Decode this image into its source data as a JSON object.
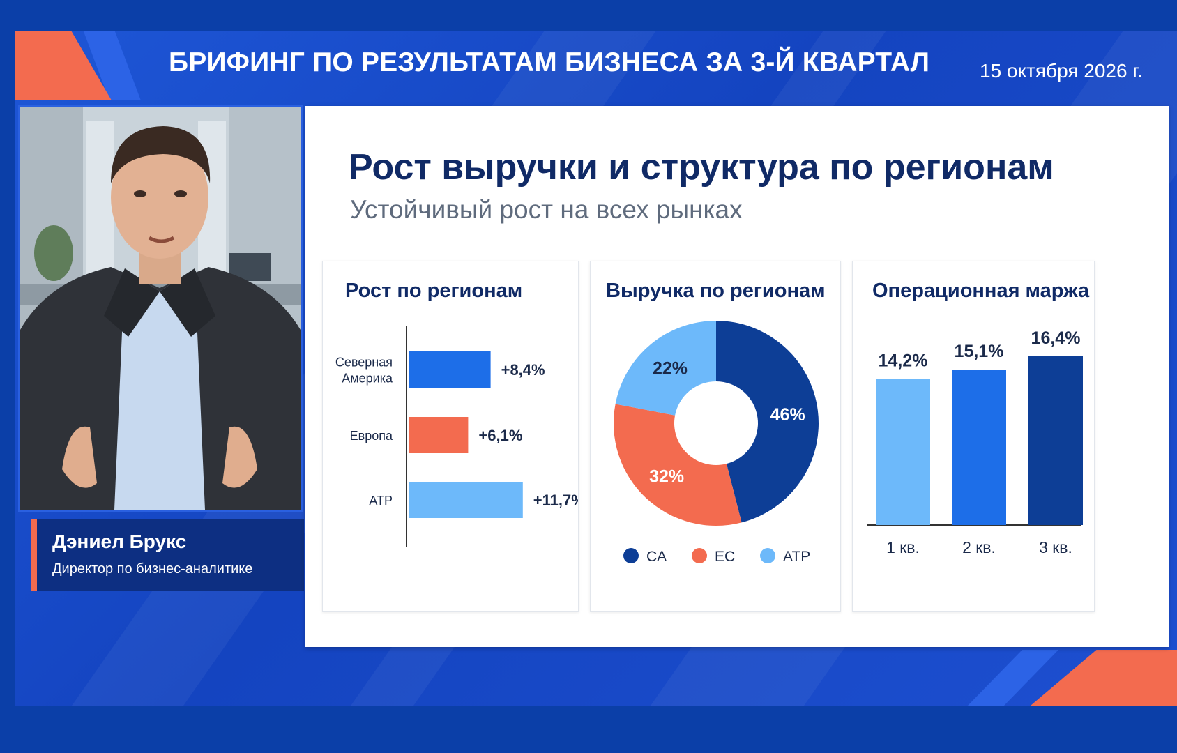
{
  "header": {
    "title": "БРИФИНГ ПО РЕЗУЛЬТАТАМ БИЗНЕСА ЗА 3-Й КВАРТАЛ",
    "date": "15 октября 2026 г."
  },
  "presenter": {
    "name": "Дэниел Брукс",
    "role": "Директор по бизнес-аналитике"
  },
  "slide": {
    "title": "Рост выручки и структура по регионам",
    "subtitle": "Устойчивый рост на всех рынках"
  },
  "colors": {
    "accent_orange": "#f36b4f",
    "brand_blue": "#1e56d6",
    "navy": "#0d3e96",
    "mid_blue": "#1d6ee8",
    "light_blue": "#6db9fa"
  },
  "chart_data": [
    {
      "type": "bar",
      "orientation": "horizontal",
      "title": "Рост по регионам",
      "categories": [
        "Северная Америка",
        "Европа",
        "ATP"
      ],
      "category_lines": [
        [
          "Северная",
          "Америка"
        ],
        [
          "Европа"
        ],
        [
          "ATP"
        ]
      ],
      "values": [
        8.4,
        6.1,
        11.7
      ],
      "labels": [
        "+8,4%",
        "+6,1%",
        "+11,7%"
      ],
      "colors": [
        "#1d6ee8",
        "#f36b4f",
        "#6db9fa"
      ],
      "unit": "%"
    },
    {
      "type": "pie",
      "style": "donut",
      "title": "Выручка по регионам",
      "categories": [
        "CA",
        "EC",
        "ATP"
      ],
      "values": [
        46,
        32,
        22
      ],
      "labels": [
        "46%",
        "32%",
        "22%"
      ],
      "colors": [
        "#0d3e96",
        "#f36b4f",
        "#6db9fa"
      ],
      "legend_position": "bottom"
    },
    {
      "type": "bar",
      "orientation": "vertical",
      "title": "Операционная маржа",
      "categories": [
        "1 кв.",
        "2 кв.",
        "3 кв."
      ],
      "values": [
        14.2,
        15.1,
        16.4
      ],
      "labels": [
        "14,2%",
        "15,1%",
        "16,4%"
      ],
      "colors": [
        "#6db9fa",
        "#1d6ee8",
        "#0d3e96"
      ],
      "unit": "%"
    }
  ]
}
